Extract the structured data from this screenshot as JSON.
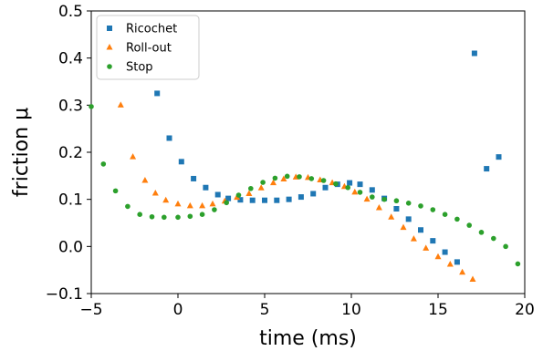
{
  "chart_data": {
    "type": "scatter",
    "xlabel": "time (ms)",
    "ylabel": "friction μ",
    "xlim": [
      -5,
      20
    ],
    "ylim": [
      -0.1,
      0.5
    ],
    "xticks": [
      "−5",
      "0",
      "5",
      "10",
      "15",
      "20"
    ],
    "yticks": [
      "−0.1",
      "0.0",
      "0.1",
      "0.2",
      "0.3",
      "0.4",
      "0.5"
    ],
    "grid": false,
    "legend_position": "top-left",
    "series": [
      {
        "name": "Ricochet",
        "marker": "square",
        "color": "#1f77b4",
        "x": [
          -1.2,
          -0.5,
          0.2,
          0.9,
          1.6,
          2.3,
          2.9,
          3.6,
          4.3,
          5.0,
          5.7,
          6.4,
          7.1,
          7.8,
          8.5,
          9.2,
          9.9,
          10.5,
          11.2,
          11.9,
          12.6,
          13.3,
          14.0,
          14.7,
          15.4,
          16.1,
          17.1,
          17.8,
          18.5
        ],
        "y": [
          0.325,
          0.23,
          0.18,
          0.144,
          0.125,
          0.11,
          0.102,
          0.099,
          0.098,
          0.098,
          0.098,
          0.1,
          0.105,
          0.112,
          0.125,
          0.132,
          0.135,
          0.132,
          0.12,
          0.102,
          0.08,
          0.058,
          0.035,
          0.012,
          -0.012,
          -0.033,
          0.41,
          0.165,
          0.19
        ]
      },
      {
        "name": "Roll-out",
        "marker": "triangle",
        "color": "#ff7f0e",
        "x": [
          -3.3,
          -2.6,
          -1.9,
          -1.3,
          -0.7,
          0.0,
          0.7,
          1.4,
          2.0,
          2.7,
          3.4,
          4.1,
          4.8,
          5.5,
          6.1,
          6.8,
          7.5,
          8.2,
          8.9,
          9.6,
          10.2,
          10.9,
          11.6,
          12.3,
          13.0,
          13.6,
          14.3,
          15.0,
          15.7,
          16.4,
          17.0
        ],
        "y": [
          0.3,
          0.19,
          0.14,
          0.113,
          0.098,
          0.09,
          0.086,
          0.086,
          0.09,
          0.096,
          0.104,
          0.112,
          0.124,
          0.135,
          0.143,
          0.147,
          0.146,
          0.141,
          0.135,
          0.127,
          0.115,
          0.1,
          0.082,
          0.062,
          0.04,
          0.016,
          -0.004,
          -0.022,
          -0.038,
          -0.055,
          -0.07
        ]
      },
      {
        "name": "Stop",
        "marker": "circle",
        "color": "#2ca02c",
        "x": [
          -5.0,
          -4.3,
          -3.6,
          -2.9,
          -2.2,
          -1.5,
          -0.8,
          0.0,
          0.7,
          1.4,
          2.1,
          2.8,
          3.5,
          4.2,
          4.9,
          5.6,
          6.3,
          7.0,
          7.7,
          8.4,
          9.1,
          9.8,
          10.5,
          11.2,
          11.9,
          12.6,
          13.3,
          14.0,
          14.7,
          15.4,
          16.1,
          16.8,
          17.5,
          18.2,
          18.9,
          19.6
        ],
        "y": [
          0.297,
          0.175,
          0.118,
          0.085,
          0.068,
          0.063,
          0.062,
          0.062,
          0.064,
          0.068,
          0.078,
          0.093,
          0.109,
          0.123,
          0.136,
          0.145,
          0.149,
          0.148,
          0.144,
          0.14,
          0.133,
          0.125,
          0.115,
          0.105,
          0.1,
          0.097,
          0.092,
          0.086,
          0.078,
          0.068,
          0.058,
          0.045,
          0.03,
          0.017,
          0.0,
          -0.037
        ]
      }
    ]
  }
}
